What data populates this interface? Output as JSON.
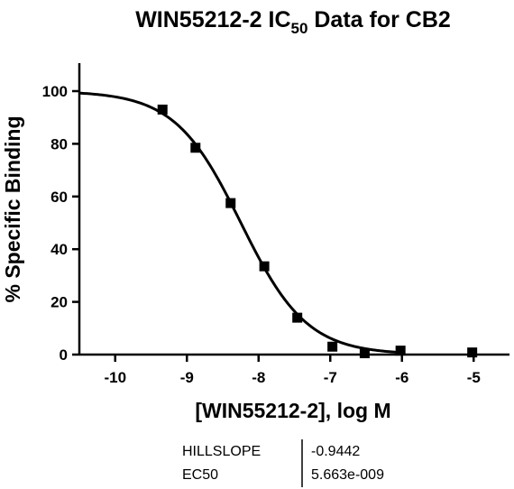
{
  "chart_data": {
    "type": "scatter",
    "title": "WIN55212-2 IC",
    "title_subscript": "50",
    "title_suffix": " Data for CB2",
    "xlabel": "[WIN55212-2], log M",
    "ylabel": "% Specific Binding",
    "xlim": [
      -10.5,
      -4.5
    ],
    "ylim": [
      0,
      100
    ],
    "xticks": [
      -10,
      -9,
      -8,
      -7,
      -6,
      -5
    ],
    "xtick_labels": [
      "-10",
      "-9",
      "-8",
      "-7",
      "-6",
      "-5"
    ],
    "yticks": [
      0,
      20,
      40,
      60,
      80,
      100
    ],
    "ytick_labels": [
      "0",
      "20",
      "40",
      "60",
      "80",
      "100"
    ],
    "grid": false,
    "series": [
      {
        "x": [
          -9.34,
          -8.88,
          -8.39,
          -7.92,
          -7.46,
          -6.97,
          -6.52,
          -6.02,
          -5.02
        ],
        "y": [
          93.0,
          78.5,
          57.5,
          33.5,
          14.0,
          3.0,
          0.5,
          1.5,
          0.8
        ],
        "marker": "square",
        "color": "#000000"
      }
    ],
    "fit_curve": {
      "model": "sigmoidal dose-response",
      "top": 100,
      "bottom": 0,
      "hillslope": -0.9442,
      "ec50": 5.663e-09,
      "color": "#000000"
    },
    "stats_table": {
      "rows": [
        {
          "label": "HILLSLOPE",
          "value": "-0.9442"
        },
        {
          "label": "EC50",
          "value": "5.663e-009"
        }
      ]
    }
  }
}
